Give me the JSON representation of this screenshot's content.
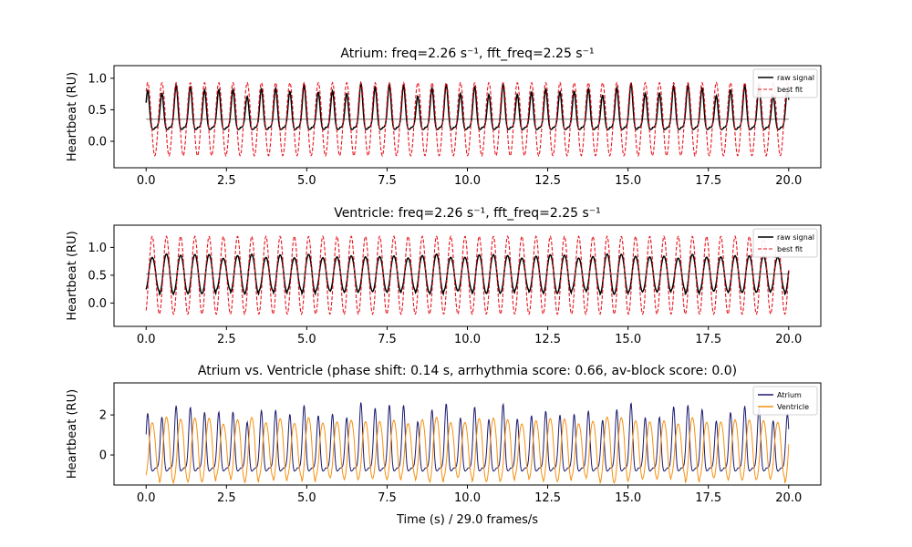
{
  "chart_data": [
    {
      "type": "line",
      "title": "Atrium: freq=2.26 s⁻¹, fft_freq=2.25 s⁻¹",
      "ylabel": "Heartbeat (RU)",
      "xlabel": "",
      "xlim": [
        -1.0,
        21.0
      ],
      "ylim": [
        -0.42,
        1.2
      ],
      "xticks": [
        0.0,
        2.5,
        5.0,
        7.5,
        10.0,
        12.5,
        15.0,
        17.5,
        20.0
      ],
      "xtick_labels": [
        "0.0",
        "2.5",
        "5.0",
        "7.5",
        "10.0",
        "12.5",
        "15.0",
        "17.5",
        "20.0"
      ],
      "yticks": [
        0.0,
        0.5,
        1.0
      ],
      "ytick_labels": [
        "0.0",
        "0.5",
        "1.0"
      ],
      "legend": "top-right",
      "grid": false,
      "series": [
        {
          "name": "raw signal",
          "color": "#000000",
          "style": "solid",
          "model": {
            "kind": "pulse",
            "freq": 2.26,
            "phase": 0.05,
            "baseline": 0.22,
            "amplitude": 0.62,
            "width": 0.055
          }
        },
        {
          "name": "best fit",
          "color": "#e8141e",
          "style": "dashed",
          "model": {
            "kind": "sine",
            "freq": 2.26,
            "phase": 0.05,
            "center": 0.35,
            "amplitude": 0.58
          }
        }
      ],
      "hline": {
        "value": 0.35,
        "color": "#777777"
      }
    },
    {
      "type": "line",
      "title": "Ventricle: freq=2.26 s⁻¹, fft_freq=2.25 s⁻¹",
      "ylabel": "Heartbeat (RU)",
      "xlabel": "",
      "xlim": [
        -1.0,
        21.0
      ],
      "ylim": [
        -0.42,
        1.4
      ],
      "xticks": [
        0.0,
        2.5,
        5.0,
        7.5,
        10.0,
        12.5,
        15.0,
        17.5,
        20.0
      ],
      "xtick_labels": [
        "0.0",
        "2.5",
        "5.0",
        "7.5",
        "10.0",
        "12.5",
        "15.0",
        "17.5",
        "20.0"
      ],
      "yticks": [
        0.0,
        0.5,
        1.0
      ],
      "ytick_labels": [
        "0.0",
        "0.5",
        "1.0"
      ],
      "legend": "top-right",
      "grid": false,
      "series": [
        {
          "name": "raw signal",
          "color": "#000000",
          "style": "solid",
          "model": {
            "kind": "smooth",
            "freq": 2.26,
            "phase": 0.19,
            "center": 0.52,
            "amplitude": 0.33
          }
        },
        {
          "name": "best fit",
          "color": "#e8141e",
          "style": "dashed",
          "model": {
            "kind": "sine",
            "freq": 2.26,
            "phase": 0.19,
            "center": 0.5,
            "amplitude": 0.7
          }
        }
      ],
      "hline": {
        "value": 0.52,
        "color": "#777777"
      }
    },
    {
      "type": "line",
      "title": "Atrium vs. Ventricle (phase shift: 0.14 s, arrhythmia score:  0.66, av-block score: 0.0)",
      "ylabel": "Heartbeat (RU)",
      "xlabel": "Time (s) / 29.0 frames/s",
      "xlim": [
        -1.0,
        21.0
      ],
      "ylim": [
        -1.5,
        3.6
      ],
      "xticks": [
        0.0,
        2.5,
        5.0,
        7.5,
        10.0,
        12.5,
        15.0,
        17.5,
        20.0
      ],
      "xtick_labels": [
        "0.0",
        "2.5",
        "5.0",
        "7.5",
        "10.0",
        "12.5",
        "15.0",
        "17.5",
        "20.0"
      ],
      "yticks": [
        0,
        2
      ],
      "ytick_labels": [
        "0",
        "2"
      ],
      "legend": "top-right",
      "grid": false,
      "series": [
        {
          "name": "Atrium",
          "color": "#1a1a6e",
          "style": "solid",
          "model": {
            "kind": "pulse",
            "freq": 2.26,
            "phase": 0.05,
            "baseline": -0.65,
            "amplitude": 2.9,
            "width": 0.05
          }
        },
        {
          "name": "Ventricle",
          "color": "#f5900f",
          "style": "solid",
          "model": {
            "kind": "smooth",
            "freq": 2.26,
            "phase": 0.19,
            "center": 0.25,
            "amplitude": 1.5
          }
        }
      ]
    }
  ]
}
